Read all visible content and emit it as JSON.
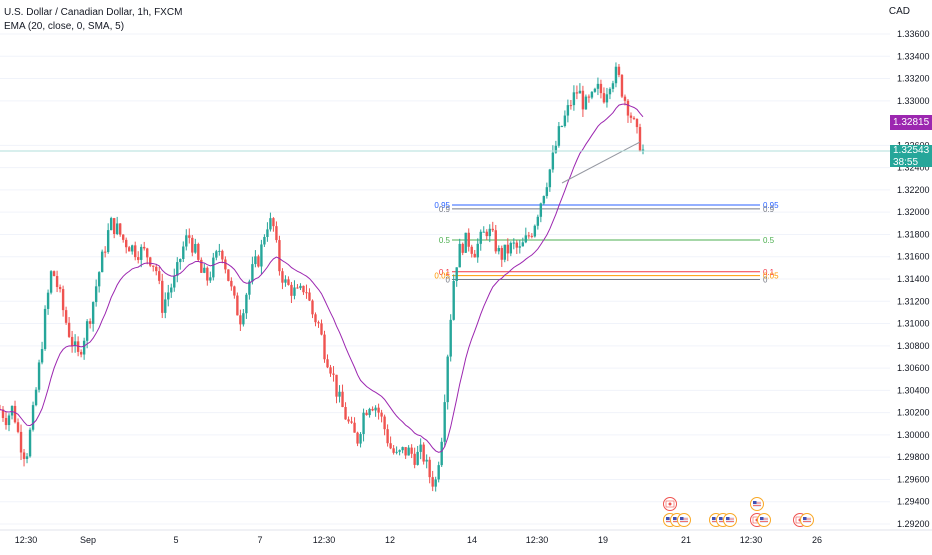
{
  "legend": {
    "symbol": "U.S. Dollar / Canadian Dollar, 1h, FXCM",
    "indicator": "EMA (20, close, 0, SMA, 5)"
  },
  "currency": "CAD",
  "price_axis": {
    "min": 1.292,
    "max": 1.336,
    "ticks": [
      "1.33600",
      "1.33400",
      "1.33200",
      "1.33000",
      "1.32600",
      "1.32400",
      "1.32200",
      "1.32000",
      "1.31800",
      "1.31600",
      "1.31400",
      "1.31200",
      "1.31000",
      "1.30800",
      "1.30600",
      "1.30400",
      "1.30200",
      "1.30000",
      "1.29800",
      "1.29600",
      "1.29400",
      "1.29200"
    ]
  },
  "price_tags": {
    "ema_value": "1.32815",
    "last_price": "1.32543",
    "countdown": "38:55"
  },
  "time_axis": [
    "12:30",
    "Sep",
    "5",
    "7",
    "12:30",
    "12",
    "14",
    "12:30",
    "19",
    "21",
    "12:30",
    "26"
  ],
  "fib_levels": [
    {
      "ratio": 0.95,
      "label": "0.95",
      "price": 1.32065,
      "color": "#2962ff"
    },
    {
      "ratio": 0.9,
      "label": "0.9",
      "price": 1.3203,
      "color": "#787b86"
    },
    {
      "ratio": 0.5,
      "label": "0.5",
      "price": 1.3175,
      "color": "#4caf50"
    },
    {
      "ratio": 0.1,
      "label": "0.1",
      "price": 1.31465,
      "color": "#f23645"
    },
    {
      "ratio": 0.05,
      "label": "0.05",
      "price": 1.3143,
      "color": "#ff9800"
    },
    {
      "ratio": 0,
      "label": "0",
      "price": 1.31395,
      "color": "#787b86"
    }
  ],
  "colors": {
    "up": "#26a69a",
    "down": "#ef5350",
    "ema": "#9c27b0",
    "grid": "#f0f3fa"
  },
  "event_icons": [
    {
      "group": [
        {
          "name": "flag-ca-icon",
          "country": "CA"
        }
      ]
    },
    {
      "group": [
        {
          "name": "flag-us-icon",
          "country": "US"
        },
        {
          "name": "flag-us-icon",
          "country": "US"
        },
        {
          "name": "flag-us-icon",
          "country": "US"
        }
      ]
    },
    {
      "group": [
        {
          "name": "flag-us-icon",
          "country": "US"
        },
        {
          "name": "flag-us-icon",
          "country": "US"
        },
        {
          "name": "flag-us-icon",
          "country": "US"
        }
      ]
    },
    {
      "group": [
        {
          "name": "flag-us-icon",
          "country": "US"
        }
      ]
    },
    {
      "group": [
        {
          "name": "flag-ca-icon",
          "country": "CA"
        },
        {
          "name": "flag-us-icon",
          "country": "US"
        }
      ]
    },
    {
      "group": [
        {
          "name": "flag-ca-icon",
          "country": "CA"
        },
        {
          "name": "flag-us-icon",
          "country": "US"
        }
      ]
    }
  ],
  "chart_data": {
    "type": "candlestick",
    "title": "U.S. Dollar / Canadian Dollar, 1h, FXCM",
    "ylim": [
      1.292,
      1.336
    ],
    "ema_label": "EMA (20, close, 0, SMA, 5)",
    "close_path": [
      1.3023,
      1.3015,
      1.3025,
      1.2995,
      1.298,
      1.3015,
      1.306,
      1.311,
      1.315,
      1.313,
      1.3105,
      1.3085,
      1.307,
      1.309,
      1.311,
      1.314,
      1.3165,
      1.319,
      1.3185,
      1.3175,
      1.317,
      1.3165,
      1.3165,
      1.316,
      1.315,
      1.3115,
      1.313,
      1.314,
      1.3165,
      1.318,
      1.3165,
      1.3145,
      1.314,
      1.3155,
      1.317,
      1.3145,
      1.312,
      1.3105,
      1.313,
      1.315,
      1.316,
      1.319,
      1.319,
      1.315,
      1.3135,
      1.313,
      1.3125,
      1.3135,
      1.311,
      1.31,
      1.3075,
      1.306,
      1.3035,
      1.302,
      1.3005,
      1.2995,
      1.302,
      1.303,
      1.3025,
      1.301,
      1.299,
      1.298,
      1.2985,
      1.2985,
      1.298,
      1.2985,
      1.2965,
      1.2955,
      1.3,
      1.308,
      1.315,
      1.317,
      1.3175,
      1.3165,
      1.3175,
      1.3185,
      1.3175,
      1.316,
      1.3165,
      1.317,
      1.3165,
      1.3175,
      1.3185,
      1.3205,
      1.3225,
      1.3245,
      1.327,
      1.3285,
      1.33,
      1.331,
      1.3295,
      1.33,
      1.331,
      1.3305,
      1.332,
      1.3325,
      1.3305,
      1.329,
      1.327,
      1.3255
    ]
  }
}
